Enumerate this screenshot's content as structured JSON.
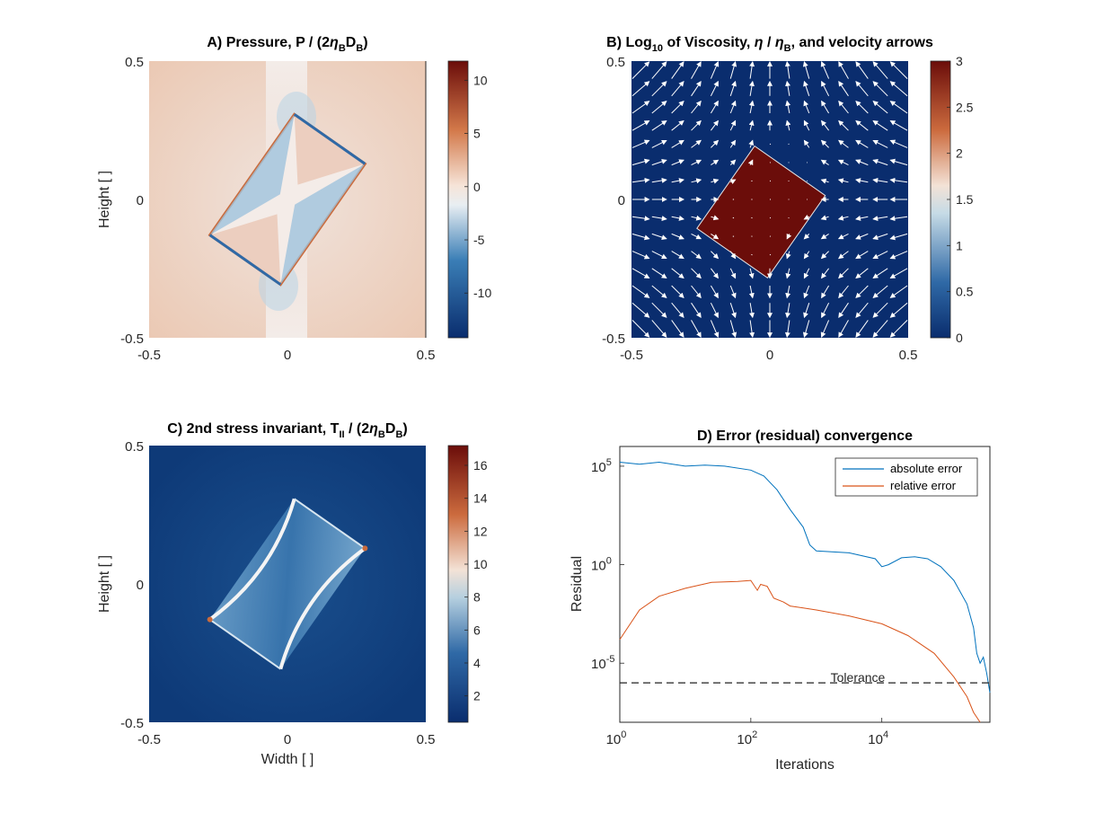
{
  "chart_data": [
    {
      "id": "A",
      "type": "heatmap",
      "title": {
        "main": "A) Pressure, P / (2",
        "eta": "η",
        "s1": "B",
        "mid": "D",
        "s2": "B",
        "end": ")"
      },
      "ylabel": "Height [ ]",
      "xlabel": "",
      "xlim": [
        -0.5,
        0.5
      ],
      "ylim": [
        -0.5,
        0.5
      ],
      "xticks": [
        "-0.5",
        "0",
        "0.5"
      ],
      "yticks": [
        "-0.5",
        "0",
        "0.5"
      ],
      "colorbar": {
        "range": [
          -14.2,
          11.8
        ],
        "ticks": [
          10,
          5,
          0,
          -5,
          -10
        ],
        "tick_labels": [
          "10",
          "5",
          "0",
          "-5",
          "-10"
        ]
      },
      "inclusion": {
        "center": [
          0,
          0
        ],
        "length": 0.42,
        "width": 0.24,
        "angle_deg": 55
      }
    },
    {
      "id": "B",
      "type": "heatmap",
      "title": {
        "main": "B) Log",
        "sub": "10",
        "mid": " of Viscosity, ",
        "eta": "η",
        "div": " / ",
        "eta2": "η",
        "s1": "B",
        "end": ", and velocity arrows"
      },
      "xlim": [
        -0.5,
        0.5
      ],
      "ylim": [
        -0.5,
        0.5
      ],
      "xticks": [
        "-0.5",
        "0",
        "0.5"
      ],
      "yticks": [
        "-0.5",
        "0",
        "0.5"
      ],
      "colorbar": {
        "range": [
          0,
          3
        ],
        "ticks": [
          3,
          2.5,
          2,
          1.5,
          1,
          0.5,
          0
        ],
        "tick_labels": [
          "3",
          "2.5",
          "2",
          "1.5",
          "1",
          "0.5",
          "0"
        ]
      },
      "background_value": 0,
      "inclusion_value": 3,
      "flow": "pure shear: inflow from left/right, outflow top/bottom"
    },
    {
      "id": "C",
      "type": "heatmap",
      "title": {
        "main": "C) 2nd stress invariant, T",
        "sub": "II",
        "mid": " / (2",
        "eta": "η",
        "s1": "B",
        "mid2": "D",
        "s2": "B",
        "end": ")"
      },
      "ylabel": "Height [ ]",
      "xlabel": "Width [ ]",
      "xlim": [
        -0.5,
        0.5
      ],
      "ylim": [
        -0.5,
        0.5
      ],
      "xticks": [
        "-0.5",
        "0",
        "0.5"
      ],
      "yticks": [
        "-0.5",
        "0",
        "0.5"
      ],
      "colorbar": {
        "range": [
          0.4,
          17.2
        ],
        "ticks": [
          16,
          14,
          12,
          10,
          8,
          6,
          4,
          2
        ],
        "tick_labels": [
          "16",
          "14",
          "12",
          "10",
          "8",
          "6",
          "4",
          "2"
        ]
      }
    },
    {
      "id": "D",
      "type": "line",
      "title": "D) Error (residual) convergence",
      "xlabel": "Iterations",
      "ylabel": "Residual",
      "xscale": "log",
      "yscale": "log",
      "xlim_log10": [
        0,
        5.65
      ],
      "ylim_log10": [
        -8.0,
        6.0
      ],
      "xticks": [
        {
          "base": "10",
          "exp": "0"
        },
        {
          "base": "10",
          "exp": "2"
        },
        {
          "base": "10",
          "exp": "4"
        }
      ],
      "yticks": [
        {
          "base": "10",
          "exp": "5"
        },
        {
          "base": "10",
          "exp": "0"
        },
        {
          "base": "10",
          "exp": "-5"
        }
      ],
      "legend_position": "top-right",
      "series": [
        {
          "name": "absolute error",
          "color": "#0072BD",
          "log10_x": [
            0,
            0.3,
            0.6,
            1.0,
            1.3,
            1.6,
            2.0,
            2.2,
            2.4,
            2.6,
            2.8,
            2.9,
            3.0,
            3.5,
            3.9,
            4.0,
            4.1,
            4.3,
            4.5,
            4.7,
            4.9,
            5.1,
            5.3,
            5.4,
            5.45,
            5.5,
            5.55,
            5.6,
            5.65
          ],
          "log10_y": [
            5.2,
            5.1,
            5.2,
            5.0,
            5.05,
            5.0,
            4.8,
            4.5,
            3.8,
            2.8,
            1.9,
            1.0,
            0.7,
            0.6,
            0.3,
            -0.1,
            0.0,
            0.35,
            0.4,
            0.3,
            -0.1,
            -0.8,
            -2.0,
            -3.2,
            -4.5,
            -5.0,
            -4.7,
            -5.5,
            -6.5
          ]
        },
        {
          "name": "relative error",
          "color": "#D95319",
          "log10_x": [
            0,
            0.3,
            0.6,
            1.0,
            1.4,
            1.8,
            2.0,
            2.1,
            2.15,
            2.25,
            2.35,
            2.5,
            2.6,
            2.8,
            3.0,
            3.5,
            4.0,
            4.4,
            4.8,
            5.1,
            5.3,
            5.4,
            5.5
          ],
          "log10_y": [
            -3.8,
            -2.3,
            -1.6,
            -1.2,
            -0.9,
            -0.85,
            -0.8,
            -1.3,
            -1.0,
            -1.1,
            -1.7,
            -1.9,
            -2.1,
            -2.2,
            -2.3,
            -2.6,
            -3.0,
            -3.6,
            -4.5,
            -5.7,
            -6.7,
            -7.5,
            -8.5
          ]
        }
      ],
      "tolerance": {
        "label": "Tolerance",
        "log10_y": -6.0
      }
    }
  ]
}
